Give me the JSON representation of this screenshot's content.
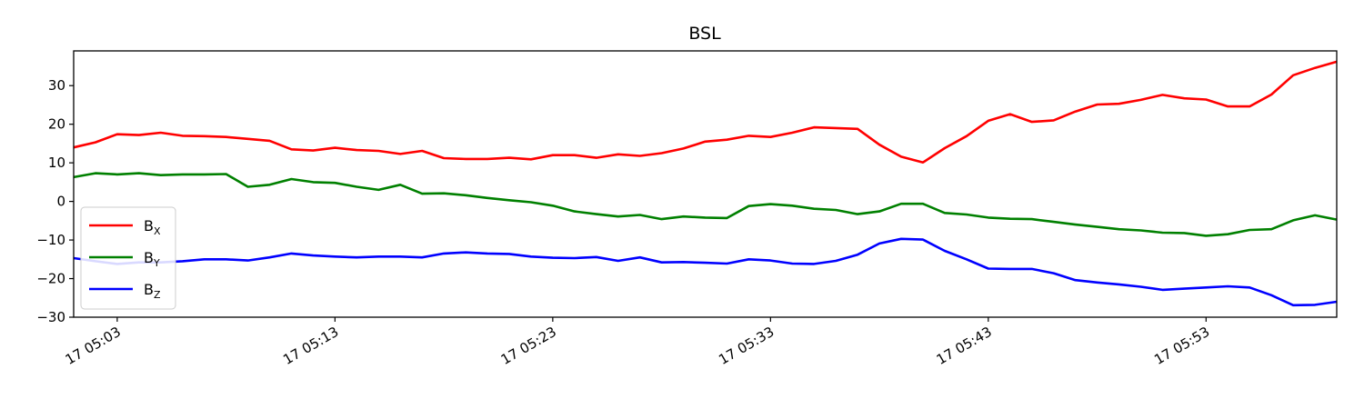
{
  "chart_data": {
    "type": "line",
    "title": "BSL",
    "xlabel": "",
    "ylabel": "",
    "x": [
      "17 05:01",
      "17 05:02",
      "17 05:03",
      "17 05:04",
      "17 05:05",
      "17 05:06",
      "17 05:07",
      "17 05:08",
      "17 05:09",
      "17 05:10",
      "17 05:11",
      "17 05:12",
      "17 05:13",
      "17 05:14",
      "17 05:15",
      "17 05:16",
      "17 05:17",
      "17 05:18",
      "17 05:19",
      "17 05:20",
      "17 05:21",
      "17 05:22",
      "17 05:23",
      "17 05:24",
      "17 05:25",
      "17 05:26",
      "17 05:27",
      "17 05:28",
      "17 05:29",
      "17 05:30",
      "17 05:31",
      "17 05:32",
      "17 05:33",
      "17 05:34",
      "17 05:35",
      "17 05:36",
      "17 05:37",
      "17 05:38",
      "17 05:39",
      "17 05:40",
      "17 05:41",
      "17 05:42",
      "17 05:43",
      "17 05:44",
      "17 05:45",
      "17 05:46",
      "17 05:47",
      "17 05:48",
      "17 05:49",
      "17 05:50",
      "17 05:51",
      "17 05:52",
      "17 05:53",
      "17 05:54",
      "17 05:55",
      "17 05:56",
      "17 05:57",
      "17 05:58",
      "17 05:59"
    ],
    "xlim": [
      "17 05:01",
      "17 05:59"
    ],
    "xticks": [
      "17 05:03",
      "17 05:13",
      "17 05:23",
      "17 05:33",
      "17 05:43",
      "17 05:53"
    ],
    "ylim": [
      -30,
      39
    ],
    "yticks": [
      -30,
      -20,
      -10,
      0,
      10,
      20,
      30
    ],
    "grid": false,
    "legend_position": "lower-left",
    "series": [
      {
        "name": "B",
        "subscript": "X",
        "color": "#ff0000",
        "values": [
          14.0,
          15.3,
          17.4,
          17.2,
          17.8,
          17.0,
          16.9,
          16.7,
          16.2,
          15.7,
          13.5,
          13.2,
          13.9,
          13.3,
          13.1,
          12.3,
          13.1,
          11.2,
          11.0,
          11.0,
          11.3,
          10.9,
          12.0,
          12.0,
          11.3,
          12.2,
          11.8,
          12.5,
          13.7,
          15.5,
          16.0,
          17.0,
          16.7,
          17.8,
          19.2,
          19.0,
          18.8,
          14.7,
          11.6,
          10.1,
          13.8,
          16.9,
          20.9,
          22.6,
          20.6,
          21.0,
          23.3,
          25.1,
          25.3,
          26.3,
          27.6,
          26.7,
          26.4,
          24.6,
          24.6,
          27.7,
          32.7,
          34.6,
          36.2
        ]
      },
      {
        "name": "B",
        "subscript": "Y",
        "color": "#008000",
        "values": [
          6.3,
          7.3,
          7.0,
          7.3,
          6.8,
          7.0,
          7.0,
          7.1,
          3.8,
          4.3,
          5.8,
          5.0,
          4.8,
          3.8,
          3.0,
          4.3,
          2.0,
          2.1,
          1.6,
          0.9,
          0.3,
          -0.2,
          -1.1,
          -2.6,
          -3.3,
          -3.9,
          -3.5,
          -4.6,
          -3.9,
          -4.2,
          -4.3,
          -1.2,
          -0.7,
          -1.1,
          -1.9,
          -2.2,
          -3.3,
          -2.6,
          -0.6,
          -0.6,
          -3.0,
          -3.4,
          -4.2,
          -4.5,
          -4.6,
          -5.3,
          -6.0,
          -6.6,
          -7.2,
          -7.5,
          -8.1,
          -8.2,
          -8.9,
          -8.5,
          -7.4,
          -7.2,
          -4.9,
          -3.6,
          -4.7
        ]
      },
      {
        "name": "B",
        "subscript": "Z",
        "color": "#0000ff",
        "values": [
          -14.7,
          -15.5,
          -16.2,
          -15.8,
          -15.8,
          -15.5,
          -15.0,
          -15.0,
          -15.3,
          -14.5,
          -13.5,
          -14.0,
          -14.3,
          -14.5,
          -14.3,
          -14.3,
          -14.5,
          -13.5,
          -13.2,
          -13.5,
          -13.6,
          -14.3,
          -14.6,
          -14.7,
          -14.4,
          -15.4,
          -14.5,
          -15.8,
          -15.7,
          -15.9,
          -16.1,
          -15.0,
          -15.3,
          -16.1,
          -16.2,
          -15.4,
          -13.8,
          -10.9,
          -9.7,
          -9.9,
          -12.8,
          -15.0,
          -17.4,
          -17.5,
          -17.5,
          -18.6,
          -20.4,
          -21.0,
          -21.5,
          -22.1,
          -22.9,
          -22.6,
          -22.3,
          -22.0,
          -22.3,
          -24.3,
          -26.9,
          -26.8,
          -26.0
        ]
      }
    ]
  }
}
